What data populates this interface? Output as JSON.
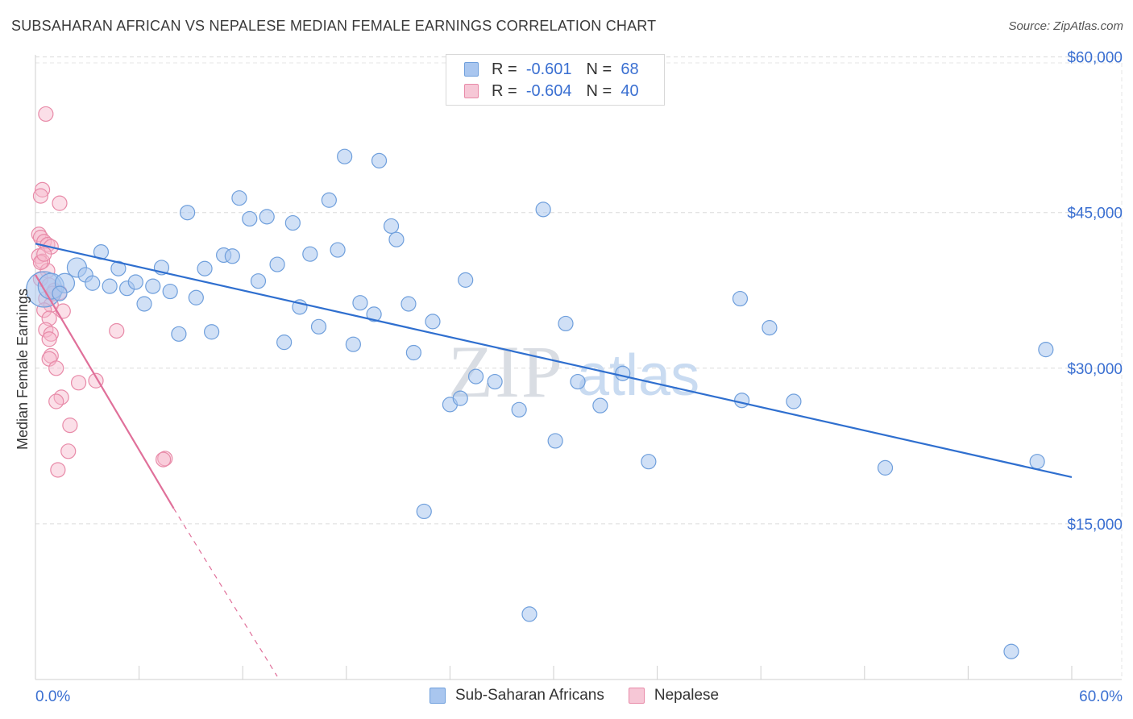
{
  "header": {
    "title": "SUBSAHARAN AFRICAN VS NEPALESE MEDIAN FEMALE EARNINGS CORRELATION CHART",
    "source": "Source: ZipAtlas.com"
  },
  "watermark": {
    "zip": "ZIP",
    "atlas": "atlas"
  },
  "legend_top": {
    "rows": [
      {
        "r_label": "R =",
        "r_value": "-0.601",
        "n_label": "N =",
        "n_value": "68"
      },
      {
        "r_label": "R =",
        "r_value": "-0.604",
        "n_label": "N =",
        "n_value": "40"
      }
    ]
  },
  "legend_bottom": {
    "items": [
      {
        "label": "Sub-Saharan Africans"
      },
      {
        "label": "Nepalese"
      }
    ]
  },
  "colors": {
    "blue_fill": "#a9c6ef",
    "blue_stroke": "#6f9fdc",
    "blue_line": "#2f6fcf",
    "pink_fill": "#f6b8cc",
    "pink_stroke": "#e88aa8",
    "pink_line": "#e0709a",
    "tick_label": "#3a6fd1"
  },
  "chart_data": {
    "type": "scatter",
    "title": "SUBSAHARAN AFRICAN VS NEPALESE MEDIAN FEMALE EARNINGS CORRELATION CHART",
    "xlabel": "",
    "ylabel": "Median Female Earnings",
    "xlim": [
      0,
      60
    ],
    "ylim": [
      0,
      63000
    ],
    "x_tick_labels": [
      "0.0%",
      "60.0%"
    ],
    "y_ticks": [
      15000,
      30000,
      45000,
      60000
    ],
    "y_tick_labels": [
      "$15,000",
      "$30,000",
      "$45,000",
      "$60,000"
    ],
    "grid": true,
    "legend_position": "top-center",
    "series": [
      {
        "name": "Sub-Saharan Africans",
        "r": -0.601,
        "n": 68,
        "trend": {
          "x0": 0,
          "y0": 42000,
          "x1": 60,
          "y1": 19500
        },
        "points": [
          [
            0.5,
            37600,
            22
          ],
          [
            0.9,
            37900,
            16
          ],
          [
            1.7,
            38200,
            12
          ],
          [
            2.4,
            39700,
            12
          ],
          [
            2.9,
            39000,
            9
          ],
          [
            3.3,
            38200,
            9
          ],
          [
            3.8,
            41200,
            9
          ],
          [
            4.3,
            37900,
            9
          ],
          [
            4.8,
            39600,
            9
          ],
          [
            5.3,
            37700,
            9
          ],
          [
            5.8,
            38300,
            9
          ],
          [
            6.3,
            36200,
            9
          ],
          [
            6.8,
            37900,
            9
          ],
          [
            7.3,
            39700,
            9
          ],
          [
            7.8,
            37400,
            9
          ],
          [
            8.3,
            33300,
            9
          ],
          [
            8.8,
            45000,
            9
          ],
          [
            9.3,
            36800,
            9
          ],
          [
            9.8,
            39600,
            9
          ],
          [
            10.2,
            33500,
            9
          ],
          [
            10.9,
            40900,
            9
          ],
          [
            11.4,
            40800,
            9
          ],
          [
            11.8,
            46400,
            9
          ],
          [
            12.4,
            44400,
            9
          ],
          [
            12.9,
            38400,
            9
          ],
          [
            13.4,
            44600,
            9
          ],
          [
            14.0,
            40000,
            9
          ],
          [
            14.4,
            32500,
            9
          ],
          [
            14.9,
            44000,
            9
          ],
          [
            15.3,
            35900,
            9
          ],
          [
            15.9,
            41000,
            9
          ],
          [
            16.4,
            34000,
            9
          ],
          [
            17.0,
            46200,
            9
          ],
          [
            17.5,
            41400,
            9
          ],
          [
            17.9,
            50400,
            9
          ],
          [
            18.4,
            32300,
            9
          ],
          [
            18.8,
            36300,
            9
          ],
          [
            19.6,
            35200,
            9
          ],
          [
            19.9,
            50000,
            9
          ],
          [
            20.6,
            43700,
            9
          ],
          [
            20.9,
            42400,
            9
          ],
          [
            21.6,
            36200,
            9
          ],
          [
            21.9,
            31500,
            9
          ],
          [
            22.5,
            16200,
            9
          ],
          [
            23.0,
            34500,
            9
          ],
          [
            24.0,
            26500,
            9
          ],
          [
            24.6,
            27100,
            9
          ],
          [
            24.9,
            38500,
            9
          ],
          [
            25.5,
            29200,
            9
          ],
          [
            26.6,
            28700,
            9
          ],
          [
            28.0,
            26000,
            9
          ],
          [
            28.6,
            6300,
            9
          ],
          [
            29.4,
            45300,
            9
          ],
          [
            30.1,
            23000,
            9
          ],
          [
            30.7,
            34300,
            9
          ],
          [
            31.4,
            28700,
            9
          ],
          [
            32.7,
            26400,
            9
          ],
          [
            34.0,
            29500,
            9
          ],
          [
            35.5,
            21000,
            9
          ],
          [
            40.8,
            36700,
            9
          ],
          [
            40.9,
            26900,
            9
          ],
          [
            42.5,
            33900,
            9
          ],
          [
            43.9,
            26800,
            9
          ],
          [
            49.2,
            20400,
            9
          ],
          [
            56.5,
            2700,
            9
          ],
          [
            58.0,
            21000,
            9
          ],
          [
            58.5,
            31800,
            9
          ],
          [
            1.4,
            37200,
            9
          ]
        ]
      },
      {
        "name": "Nepalese",
        "r": -0.604,
        "n": 40,
        "trend": {
          "x0": 0,
          "y0": 39000,
          "x1": 8,
          "y1": 16500
        },
        "trend_dashed": {
          "x0": 8,
          "y0": 16500,
          "x1": 14,
          "y1": 300
        },
        "points": [
          [
            0.6,
            54500,
            9
          ],
          [
            0.4,
            47200,
            9
          ],
          [
            0.3,
            46600,
            9
          ],
          [
            1.4,
            45900,
            9
          ],
          [
            0.2,
            42900,
            9
          ],
          [
            0.3,
            42600,
            9
          ],
          [
            0.5,
            42200,
            9
          ],
          [
            0.7,
            41900,
            9
          ],
          [
            0.9,
            41700,
            9
          ],
          [
            0.2,
            40800,
            9
          ],
          [
            0.4,
            40300,
            9
          ],
          [
            0.7,
            39400,
            9
          ],
          [
            0.3,
            38600,
            9
          ],
          [
            0.8,
            38000,
            9
          ],
          [
            1.1,
            37500,
            9
          ],
          [
            1.4,
            37300,
            9
          ],
          [
            0.6,
            36700,
            9
          ],
          [
            0.9,
            36100,
            9
          ],
          [
            0.5,
            35600,
            9
          ],
          [
            1.6,
            35500,
            9
          ],
          [
            0.8,
            34800,
            9
          ],
          [
            0.6,
            33700,
            9
          ],
          [
            0.9,
            33300,
            9
          ],
          [
            0.8,
            32800,
            9
          ],
          [
            4.7,
            33600,
            9
          ],
          [
            0.9,
            31200,
            9
          ],
          [
            0.8,
            30900,
            9
          ],
          [
            1.2,
            30000,
            9
          ],
          [
            2.5,
            28600,
            9
          ],
          [
            3.5,
            28800,
            9
          ],
          [
            1.5,
            27200,
            9
          ],
          [
            1.2,
            26800,
            9
          ],
          [
            2.0,
            24500,
            9
          ],
          [
            1.9,
            22000,
            9
          ],
          [
            1.3,
            20200,
            9
          ],
          [
            7.5,
            21300,
            9
          ],
          [
            7.4,
            21200,
            9
          ],
          [
            0.3,
            40200,
            9
          ],
          [
            1.0,
            37200,
            9
          ],
          [
            0.5,
            41000,
            9
          ]
        ]
      }
    ]
  }
}
